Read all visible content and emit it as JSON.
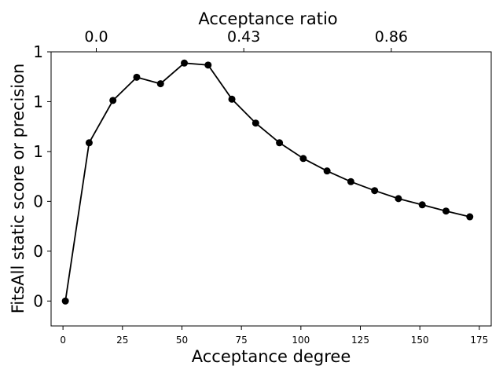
{
  "chart_data": {
    "type": "line",
    "title": "",
    "xlabel": "Acceptance degree",
    "ylabel": "FitsAll static score or precision",
    "top_xlabel": "Acceptance ratio",
    "xlim": [
      -5,
      180
    ],
    "ylim": [
      -0.1,
      1.0
    ],
    "xticks": [
      0,
      25,
      50,
      75,
      100,
      125,
      150,
      175
    ],
    "xtick_labels": [
      "0",
      "25",
      "50",
      "75",
      "100",
      "125",
      "150",
      "175"
    ],
    "yticks": [
      0.0,
      0.2,
      0.4,
      0.6,
      0.8,
      1.0
    ],
    "ytick_labels": [
      "0",
      "0",
      "0",
      "1",
      "1",
      "1"
    ],
    "top_xticks": [
      14,
      76,
      138
    ],
    "top_xtick_labels": [
      "0.0",
      "0.43",
      "0.86"
    ],
    "grid": false,
    "series": [
      {
        "color": "#000000",
        "x": [
          1,
          11,
          21,
          31,
          41,
          51,
          61,
          71,
          81,
          91,
          101,
          111,
          121,
          131,
          141,
          151,
          161,
          171
        ],
        "y": [
          0.0,
          0.635,
          0.805,
          0.898,
          0.872,
          0.955,
          0.947,
          0.81,
          0.714,
          0.635,
          0.572,
          0.522,
          0.479,
          0.443,
          0.411,
          0.386,
          0.361,
          0.338
        ]
      }
    ]
  }
}
